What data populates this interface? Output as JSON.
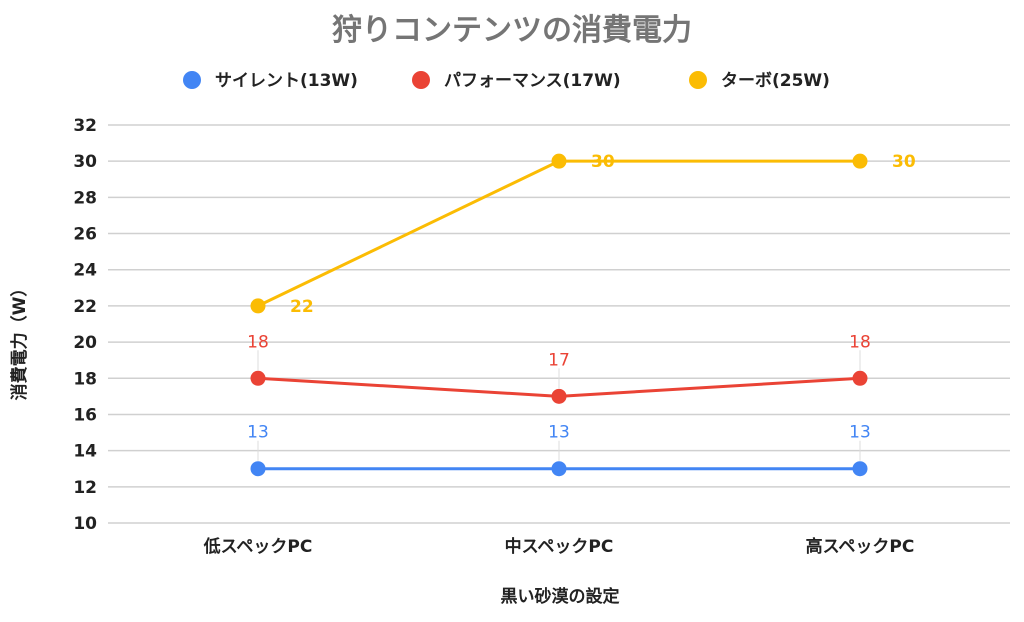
{
  "chart_data": {
    "type": "line",
    "title": "狩りコンテンツの消費電力",
    "xlabel": "黒い砂漠の設定",
    "ylabel": "消費電力（W）",
    "categories": [
      "低スペックPC",
      "中スペックPC",
      "高スペックPC"
    ],
    "ylim": [
      10,
      32
    ],
    "yticks": [
      10,
      12,
      14,
      16,
      18,
      20,
      22,
      24,
      26,
      28,
      30,
      32
    ],
    "grid": true,
    "legend_position": "top",
    "series": [
      {
        "name": "サイレント(13W)",
        "color": "#4285f4",
        "values": [
          13,
          13,
          13
        ],
        "label_pos": "above"
      },
      {
        "name": "パフォーマンス(17W)",
        "color": "#ea4335",
        "values": [
          18,
          17,
          18
        ],
        "label_pos": "above"
      },
      {
        "name": "ターボ(25W)",
        "color": "#fbbc04",
        "values": [
          22,
          30,
          30
        ],
        "label_pos": "right"
      }
    ]
  }
}
